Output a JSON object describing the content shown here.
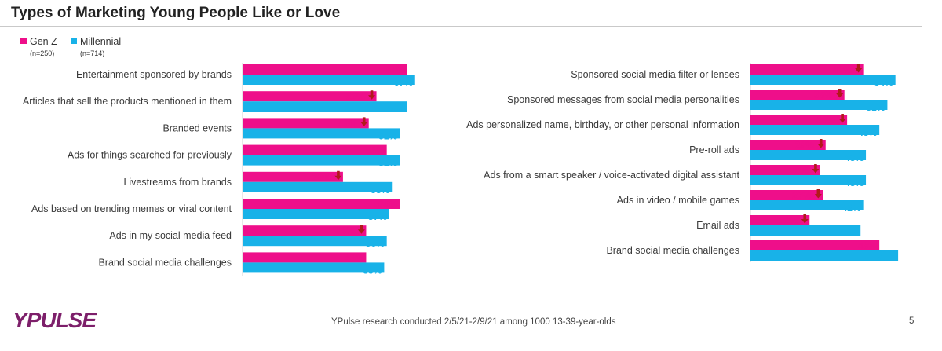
{
  "title": "Types of Marketing Young People Like or Love",
  "legend": {
    "genz": {
      "label": "Gen Z",
      "n": "(n=250)",
      "color": "#ee0f8a"
    },
    "millennial": {
      "label": "Millennial",
      "n": "(n=714)",
      "color": "#18b2e8"
    }
  },
  "chart_data": [
    {
      "type": "bar",
      "orientation": "horizontal",
      "categories": [
        "Entertainment  sponsored by brands",
        "Articles that sell the products mentioned in them",
        "Branded events",
        "Ads for things searched for previously",
        "Livestreams from brands",
        "Ads based on trending memes or viral content",
        "Ads in my social media feed",
        "Brand social media challenges"
      ],
      "series": [
        {
          "name": "Gen Z",
          "values": [
            64,
            52,
            49,
            56,
            39,
            61,
            48,
            48
          ]
        },
        {
          "name": "Millennial",
          "values": [
            67,
            64,
            61,
            61,
            58,
            57,
            56,
            55
          ]
        }
      ],
      "down_arrow": [
        false,
        true,
        true,
        false,
        true,
        false,
        true,
        false
      ],
      "value_suffix": "%",
      "xlim": [
        0,
        100
      ]
    },
    {
      "type": "bar",
      "orientation": "horizontal",
      "categories": [
        "Sponsored social media filter or lenses",
        "Sponsored messages from social media personalities",
        "Ads personalized name, birthday, or other personal information",
        "Pre-roll ads",
        "Ads from a smart speaker / voice-activated digital assistant",
        "Ads in video / mobile games",
        "Email ads",
        "Brand social media challenges"
      ],
      "series": [
        {
          "name": "Gen Z",
          "values": [
            42,
            35,
            36,
            28,
            26,
            27,
            22,
            48
          ]
        },
        {
          "name": "Millennial",
          "values": [
            54,
            51,
            48,
            43,
            43,
            42,
            41,
            55
          ]
        }
      ],
      "down_arrow": [
        true,
        true,
        true,
        true,
        true,
        true,
        true,
        false
      ],
      "value_suffix": "%",
      "xlim": [
        0,
        100
      ]
    }
  ],
  "footer": {
    "logo": "YPULSE",
    "note": "YPulse research conducted 2/5/21-2/9/21 among 1000 13-39-year-olds",
    "page": "5"
  },
  "colors": {
    "arrow": "#b21a1a"
  }
}
